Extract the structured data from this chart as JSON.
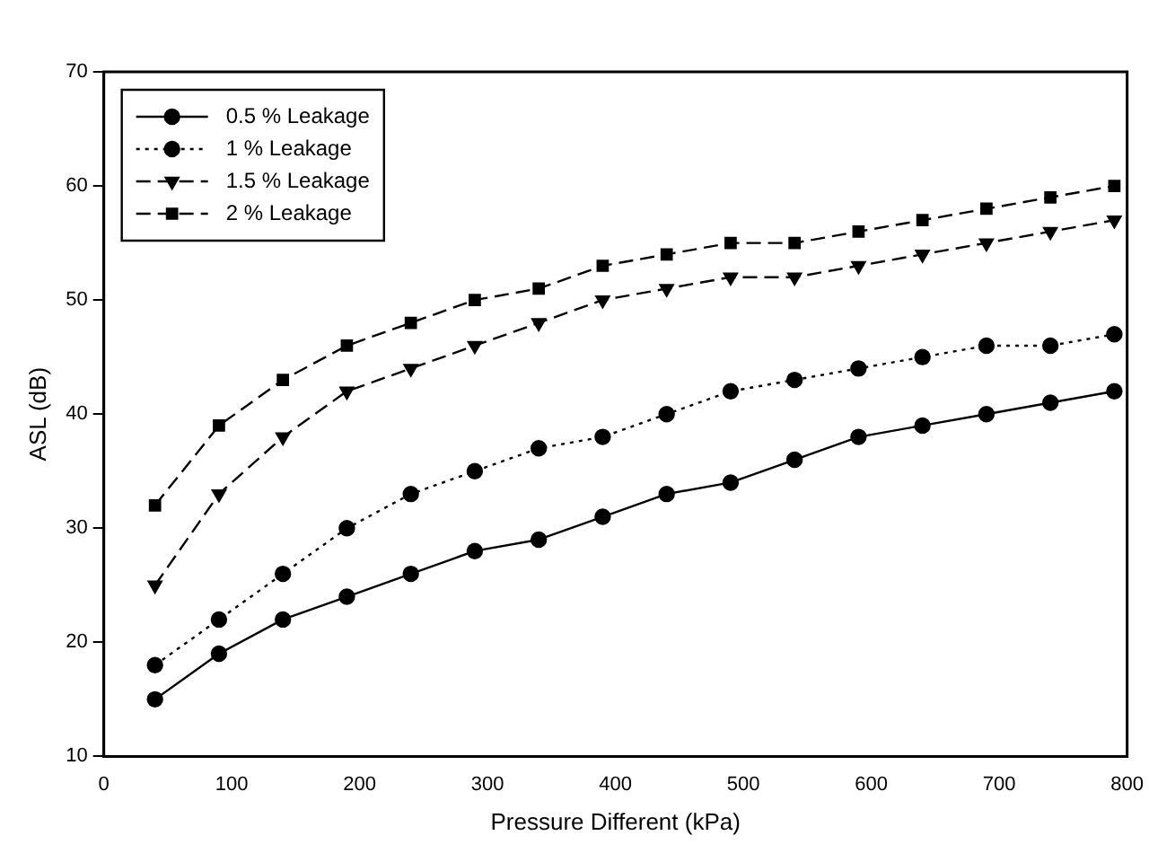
{
  "chart_data": {
    "type": "line",
    "xlabel": "Pressure Different (kPa)",
    "ylabel": "ASL (dB)",
    "x": [
      40,
      90,
      140,
      190,
      240,
      290,
      340,
      390,
      440,
      490,
      540,
      590,
      640,
      690,
      740,
      790
    ],
    "xlim": [
      0,
      800
    ],
    "xticks": [
      0,
      100,
      200,
      300,
      400,
      500,
      600,
      700,
      800
    ],
    "ylim": [
      10,
      70
    ],
    "yticks": [
      10,
      20,
      30,
      40,
      50,
      60,
      70
    ],
    "grid": false,
    "legend": "top left",
    "series": [
      {
        "name": "0.5 % Leakage",
        "color": "#000000",
        "marker": "circle",
        "line_style": "solid",
        "values": [
          15,
          19,
          22,
          24,
          26,
          28,
          29,
          31,
          33,
          34,
          36,
          38,
          39,
          40,
          41,
          42
        ]
      },
      {
        "name": "1 % Leakage",
        "color": "#000000",
        "marker": "circle",
        "line_style": "dotted",
        "values": [
          18,
          22,
          26,
          30,
          33,
          35,
          37,
          38,
          40,
          42,
          43,
          44,
          45,
          46,
          46,
          47
        ]
      },
      {
        "name": "1.5 % Leakage",
        "color": "#000000",
        "marker": "triangle",
        "line_style": "dashed",
        "values": [
          25,
          33,
          38,
          42,
          44,
          46,
          48,
          50,
          51,
          52,
          52,
          53,
          54,
          55,
          56,
          57
        ]
      },
      {
        "name": "2 % Leakage",
        "color": "#000000",
        "marker": "square",
        "line_style": "dashed",
        "values": [
          32,
          39,
          43,
          46,
          48,
          50,
          51,
          53,
          54,
          55,
          55,
          56,
          57,
          58,
          59,
          60
        ]
      }
    ]
  }
}
